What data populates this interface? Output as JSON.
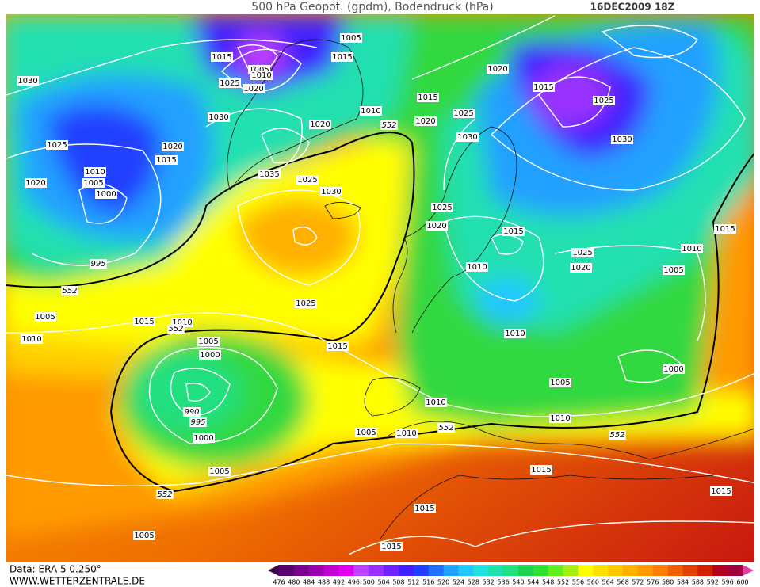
{
  "header": {
    "title": "500 hPa Geopot. (gpdm), Bodendruck (hPa)",
    "date": "16DEC2009 18Z"
  },
  "footer": {
    "source": "Data: ERA 5 0.250°",
    "website": "WWW.WETTERZENTRALE.DE"
  },
  "colorbar": {
    "labels": [
      476,
      480,
      484,
      488,
      492,
      496,
      500,
      504,
      508,
      512,
      516,
      520,
      524,
      528,
      532,
      536,
      540,
      544,
      548,
      552,
      556,
      560,
      564,
      568,
      572,
      576,
      580,
      584,
      588,
      592,
      596,
      600
    ],
    "colors": [
      "#3d0050",
      "#5a0070",
      "#7a0090",
      "#9a00b0",
      "#c000d0",
      "#e000f0",
      "#c040ff",
      "#9a30ff",
      "#7020ff",
      "#4020ff",
      "#2040ff",
      "#2070ff",
      "#20a0ff",
      "#20c8ff",
      "#20e0e0",
      "#20e0b0",
      "#20e080",
      "#20d050",
      "#30e030",
      "#60f020",
      "#a0f010",
      "#ffff00",
      "#ffe000",
      "#ffc800",
      "#ffb000",
      "#ff9a00",
      "#ff8000",
      "#f06000",
      "#e04000",
      "#d02000",
      "#b00020",
      "#a00040",
      "#e040a0"
    ]
  },
  "isobar_labels": [
    1005,
    1015,
    1015,
    1005,
    1010,
    1025,
    1020,
    1030,
    1020,
    1015,
    1025,
    1015,
    1010,
    1030,
    1020,
    1020,
    1025,
    552,
    1020,
    1025,
    1030,
    1030,
    1015,
    1010,
    1005,
    1020,
    1000,
    1035,
    1025,
    1030,
    1025,
    1020,
    1015,
    995,
    1025,
    1010,
    1015,
    1020,
    1010,
    1005,
    552,
    1025,
    1005,
    1015,
    1010,
    552,
    1010,
    1005,
    1015,
    1000,
    1010,
    1000,
    1005,
    990,
    995,
    1010,
    1010,
    1005,
    1010,
    552,
    1000,
    552,
    1005,
    1015,
    552,
    1015,
    1015,
    1005,
    1015
  ]
}
